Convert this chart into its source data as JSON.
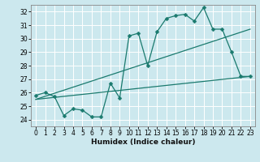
{
  "title": "",
  "xlabel": "Humidex (Indice chaleur)",
  "bg_color": "#cce8ee",
  "grid_color": "#ffffff",
  "line_color": "#1a7a6e",
  "xlim": [
    -0.5,
    23.5
  ],
  "ylim": [
    23.5,
    32.5
  ],
  "xticks": [
    0,
    1,
    2,
    3,
    4,
    5,
    6,
    7,
    8,
    9,
    10,
    11,
    12,
    13,
    14,
    15,
    16,
    17,
    18,
    19,
    20,
    21,
    22,
    23
  ],
  "yticks": [
    24,
    25,
    26,
    27,
    28,
    29,
    30,
    31,
    32
  ],
  "line1_x": [
    0,
    1,
    2,
    3,
    4,
    5,
    6,
    7,
    8,
    9,
    10,
    11,
    12,
    13,
    14,
    15,
    16,
    17,
    18,
    19,
    20,
    21,
    22,
    23
  ],
  "line1_y": [
    25.8,
    26.0,
    25.7,
    24.3,
    24.8,
    24.7,
    24.2,
    24.2,
    26.7,
    25.6,
    30.2,
    30.4,
    28.0,
    30.5,
    31.5,
    31.7,
    31.8,
    31.3,
    32.3,
    30.7,
    30.7,
    29.0,
    27.2,
    27.2
  ],
  "line2_x": [
    0,
    23
  ],
  "line2_y": [
    25.5,
    27.2
  ],
  "line3_x": [
    0,
    23
  ],
  "line3_y": [
    25.5,
    30.7
  ],
  "marker_size": 2.5
}
